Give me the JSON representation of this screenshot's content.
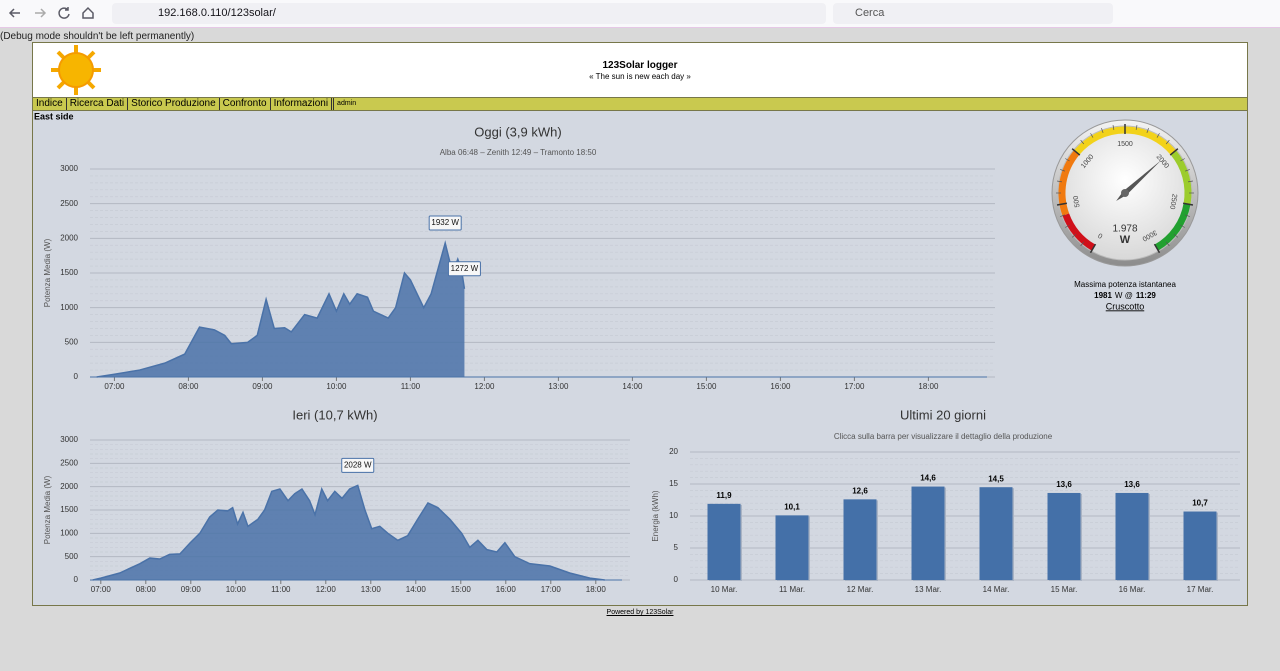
{
  "browser": {
    "url": "192.168.0.110/123solar/",
    "search_placeholder": "Cerca"
  },
  "debug_notice": "(Debug mode shouldn't be left permanently)",
  "header": {
    "title": "123Solar logger",
    "subtitle": "« The sun is new each day »"
  },
  "nav": [
    "Indice",
    "Ricerca Dati",
    "Storico Produzione",
    "Confronto",
    "Informazioni",
    "admin"
  ],
  "section": "East side",
  "chart_data": [
    {
      "type": "area",
      "title": "Oggi (3,9 kWh)",
      "subtitle": "Alba 06:48 – Zenith 12:49 – Tramonto 18:50",
      "y_label": "Potenza Media (W)",
      "x": [
        6.76,
        7.0,
        7.34,
        7.68,
        7.95,
        8.15,
        8.35,
        8.49,
        8.58,
        8.8,
        8.93,
        9.05,
        9.16,
        9.3,
        9.39,
        9.57,
        9.74,
        9.9,
        10.0,
        10.1,
        10.18,
        10.28,
        10.42,
        10.5,
        10.7,
        10.8,
        10.92,
        11.0,
        11.18,
        11.28,
        11.47,
        11.57,
        11.64,
        11.69,
        11.73
      ],
      "series": [
        {
          "color": "#4a72a8",
          "values": [
            0,
            40,
            100,
            200,
            330,
            720,
            680,
            600,
            480,
            500,
            600,
            1120,
            700,
            710,
            650,
            900,
            850,
            1200,
            950,
            1200,
            1050,
            1200,
            1150,
            950,
            850,
            1000,
            1500,
            1400,
            1000,
            1200,
            1932,
            1500,
            1700,
            1550,
            1272
          ],
          "value_labels": [
            null,
            null,
            null,
            null,
            null,
            null,
            null,
            null,
            null,
            null,
            null,
            null,
            null,
            null,
            null,
            null,
            null,
            null,
            null,
            null,
            null,
            null,
            null,
            null,
            null,
            null,
            null,
            null,
            null,
            null,
            "1932 W",
            null,
            null,
            null,
            "1272 W"
          ]
        }
      ],
      "xlim": [
        6.67,
        18.9
      ],
      "xticks": [
        {
          "value": 7,
          "label": "07:00"
        },
        {
          "value": 8,
          "label": "08:00"
        },
        {
          "value": 9,
          "label": "09:00"
        },
        {
          "value": 10,
          "label": "10:00"
        },
        {
          "value": 11,
          "label": "11:00"
        },
        {
          "value": 12,
          "label": "12:00"
        },
        {
          "value": 13,
          "label": "13:00"
        },
        {
          "value": 14,
          "label": "14:00"
        },
        {
          "value": 15,
          "label": "15:00"
        },
        {
          "value": 16,
          "label": "16:00"
        },
        {
          "value": 17,
          "label": "17:00"
        },
        {
          "value": 18,
          "label": "18:00"
        }
      ],
      "ylim": [
        0,
        3000
      ],
      "yticks": [
        0,
        500,
        1000,
        1500,
        2000,
        2500,
        3000
      ],
      "grid": true
    },
    {
      "type": "gauge",
      "value": 1978,
      "value_label": "1.978",
      "unit": "W",
      "ylim": [
        0,
        3000
      ],
      "yticks": [
        0,
        500,
        1000,
        1500,
        2000,
        2500,
        3000
      ],
      "bands": [
        {
          "from": 0,
          "to": 400,
          "color": "#d0101a"
        },
        {
          "from": 400,
          "to": 1000,
          "color": "#f07a10"
        },
        {
          "from": 1000,
          "to": 2000,
          "color": "#f2d21a"
        },
        {
          "from": 2000,
          "to": 2500,
          "color": "#9ccc2c"
        },
        {
          "from": 2500,
          "to": 3000,
          "color": "#22a030"
        }
      ],
      "caption": "Massima potenza istantanea",
      "peak_value": 1981,
      "peak_suffix": "W @",
      "peak_time": "11:29",
      "link": "Cruscotto"
    },
    {
      "type": "area",
      "title": "Ieri (10,7 kWh)",
      "y_label": "Potenza Media (W)",
      "x": [
        6.82,
        7.0,
        7.42,
        7.87,
        8.09,
        8.31,
        8.53,
        8.76,
        8.98,
        9.2,
        9.42,
        9.6,
        9.82,
        9.93,
        10.04,
        10.16,
        10.27,
        10.49,
        10.64,
        10.8,
        10.98,
        11.16,
        11.31,
        11.47,
        11.64,
        11.76,
        11.91,
        12.04,
        12.2,
        12.36,
        12.53,
        12.71,
        12.87,
        13.02,
        13.2,
        13.38,
        13.6,
        13.82,
        14.04,
        14.27,
        14.49,
        14.76,
        15.02,
        15.2,
        15.38,
        15.58,
        15.8,
        15.98,
        16.2,
        16.53,
        16.98,
        17.42,
        17.87,
        18.2
      ],
      "series": [
        {
          "color": "#4a72a8",
          "values": [
            0,
            40,
            150,
            350,
            470,
            450,
            550,
            560,
            790,
            1000,
            1350,
            1500,
            1480,
            1550,
            1200,
            1450,
            1150,
            1300,
            1500,
            1900,
            1950,
            1700,
            1850,
            1950,
            1700,
            1400,
            1950,
            1700,
            1900,
            1750,
            1950,
            2028,
            1500,
            1100,
            1150,
            1000,
            850,
            950,
            1300,
            1650,
            1550,
            1300,
            1000,
            700,
            850,
            650,
            600,
            800,
            500,
            350,
            300,
            150,
            40,
            0
          ],
          "value_labels": [
            null,
            null,
            null,
            null,
            null,
            null,
            null,
            null,
            null,
            null,
            null,
            null,
            null,
            null,
            null,
            null,
            null,
            null,
            null,
            null,
            null,
            null,
            null,
            null,
            null,
            null,
            null,
            null,
            null,
            null,
            null,
            "2028 W",
            null,
            null,
            null,
            null,
            null,
            null,
            null,
            null,
            null,
            null,
            null,
            null,
            null,
            null,
            null,
            null,
            null,
            null,
            null,
            null,
            null,
            null
          ]
        }
      ],
      "xlim": [
        6.76,
        18.76
      ],
      "xticks": [
        {
          "value": 7,
          "label": "07:00"
        },
        {
          "value": 8,
          "label": "08:00"
        },
        {
          "value": 9,
          "label": "09:00"
        },
        {
          "value": 10,
          "label": "10:00"
        },
        {
          "value": 11,
          "label": "11:00"
        },
        {
          "value": 12,
          "label": "12:00"
        },
        {
          "value": 13,
          "label": "13:00"
        },
        {
          "value": 14,
          "label": "14:00"
        },
        {
          "value": 15,
          "label": "15:00"
        },
        {
          "value": 16,
          "label": "16:00"
        },
        {
          "value": 17,
          "label": "17:00"
        },
        {
          "value": 18,
          "label": "18:00"
        }
      ],
      "ylim": [
        0,
        3000
      ],
      "yticks": [
        0,
        500,
        1000,
        1500,
        2000,
        2500,
        3000
      ],
      "grid": true
    },
    {
      "type": "bar",
      "title": "Ultimi 20 giorni",
      "subtitle": "Clicca sulla barra per visualizzare il dettaglio della produzione",
      "y_label": "Energia (kWh)",
      "categories": [
        "10 Mar.",
        "11 Mar.",
        "12 Mar.",
        "13 Mar.",
        "14 Mar.",
        "15 Mar.",
        "16 Mar.",
        "17 Mar."
      ],
      "values": [
        11.9,
        10.1,
        12.6,
        14.6,
        14.5,
        13.6,
        13.6,
        10.7
      ],
      "value_labels": [
        "11,9",
        "10,1",
        "12,6",
        "14,6",
        "14,5",
        "13,6",
        "13,6",
        "10,7"
      ],
      "color": "#4470a8",
      "ylim": [
        0,
        20
      ],
      "yticks": [
        0,
        5,
        10,
        15,
        20
      ],
      "grid": true
    }
  ],
  "footer": "Powered by 123Solar"
}
